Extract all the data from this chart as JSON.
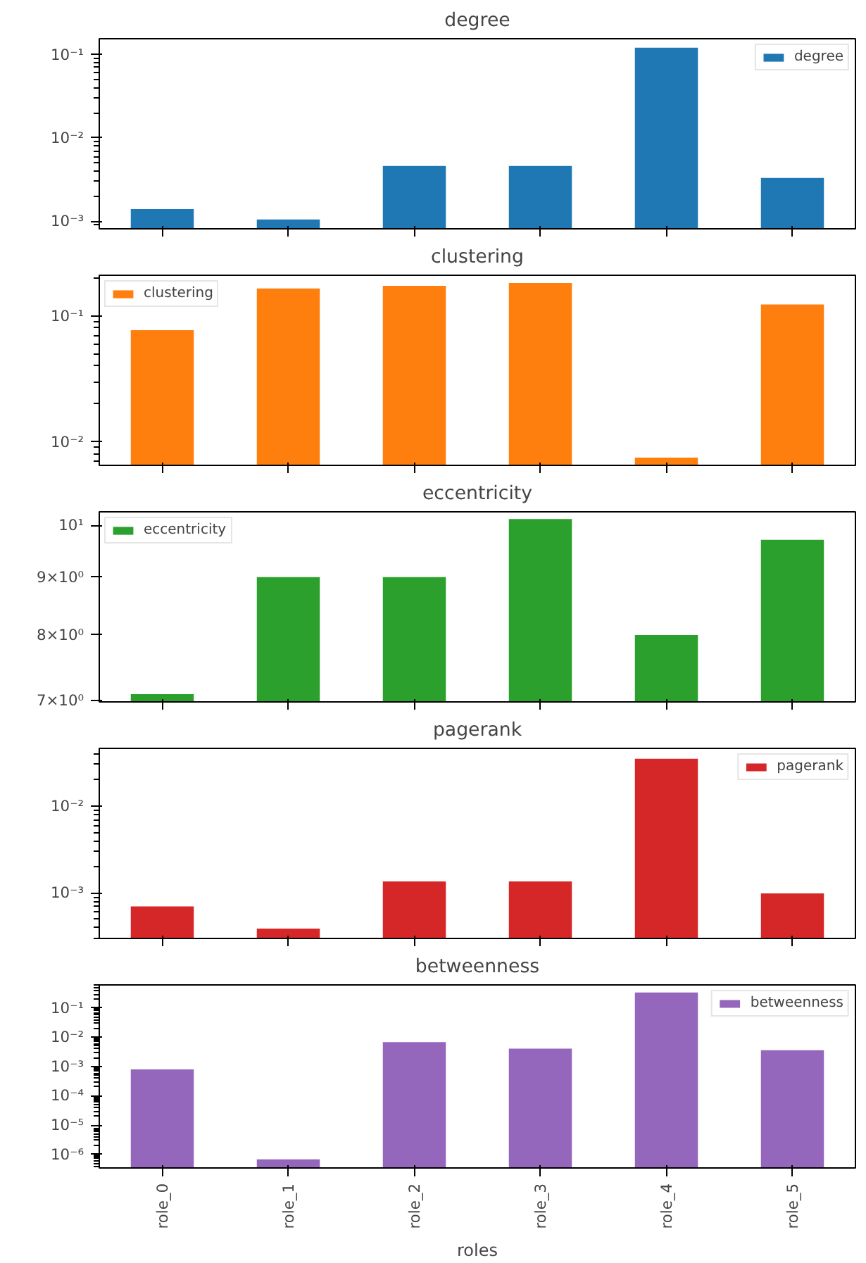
{
  "chart_data": [
    {
      "type": "bar",
      "title": "degree",
      "categories": [
        null,
        null,
        null,
        null,
        null,
        null
      ],
      "series": [
        {
          "name": "degree",
          "color": "#1f77b4",
          "values": [
            0.0014,
            0.00105,
            0.0046,
            0.0046,
            0.121,
            0.0033
          ]
        }
      ],
      "log": true,
      "ylim": [
        0.00081,
        0.155
      ],
      "yticks": [
        {
          "value": 0.001,
          "label": "10⁻³"
        },
        {
          "value": 0.01,
          "label": "10⁻²"
        },
        {
          "value": 0.1,
          "label": "10⁻¹"
        }
      ],
      "legend": "top right",
      "tick_labels": "y"
    },
    {
      "type": "bar",
      "title": "clustering",
      "categories": [
        null,
        null,
        null,
        null,
        null,
        null
      ],
      "series": [
        {
          "name": "clustering",
          "color": "#ff7f0e",
          "values": [
            0.077,
            0.165,
            0.173,
            0.182,
            0.0075,
            0.123
          ]
        }
      ],
      "log": true,
      "ylim": [
        0.0065,
        0.21
      ],
      "yticks": [
        {
          "value": 0.01,
          "label": "10⁻²"
        },
        {
          "value": 0.1,
          "label": "10⁻¹"
        }
      ],
      "legend": "top left",
      "tick_labels": "y"
    },
    {
      "type": "bar",
      "title": "eccentricity",
      "categories": [
        null,
        null,
        null,
        null,
        null,
        null
      ],
      "series": [
        {
          "name": "eccentricity",
          "color": "#2ca02c",
          "values": [
            7.09,
            9,
            9,
            10.13,
            8,
            9.71
          ]
        }
      ],
      "log": true,
      "ylim": [
        6.98,
        10.28
      ],
      "yticks": [
        {
          "value": 7,
          "label": "7×10⁰"
        },
        {
          "value": 8,
          "label": "8×10⁰"
        },
        {
          "value": 9,
          "label": "9×10⁰"
        },
        {
          "value": 10,
          "label": "10¹"
        }
      ],
      "legend": "top left",
      "tick_labels": "y"
    },
    {
      "type": "bar",
      "title": "pagerank",
      "categories": [
        null,
        null,
        null,
        null,
        null,
        null
      ],
      "series": [
        {
          "name": "pagerank",
          "color": "#d62728",
          "values": [
            0.0007,
            0.00039,
            0.00136,
            0.00136,
            0.035,
            0.00099
          ]
        }
      ],
      "log": true,
      "ylim": [
        0.0003,
        0.046
      ],
      "yticks": [
        {
          "value": 0.001,
          "label": "10⁻³"
        },
        {
          "value": 0.01,
          "label": "10⁻²"
        }
      ],
      "legend": "top right",
      "tick_labels": "y"
    },
    {
      "type": "bar",
      "title": "betweenness",
      "xlabel": "roles",
      "categories": [
        "role_0",
        "role_1",
        "role_2",
        "role_3",
        "role_4",
        "role_5"
      ],
      "series": [
        {
          "name": "betweenness",
          "color": "#9467bd",
          "values": [
            0.0008,
            6.7e-07,
            0.0069,
            0.0041,
            0.34,
            0.0036
          ]
        }
      ],
      "log": true,
      "ylim": [
        3.4e-07,
        0.62
      ],
      "yticks": [
        {
          "value": 1e-06,
          "label": "10⁻⁶"
        },
        {
          "value": 1e-05,
          "label": "10⁻⁵"
        },
        {
          "value": 0.0001,
          "label": "10⁻⁴"
        },
        {
          "value": 0.001,
          "label": "10⁻³"
        },
        {
          "value": 0.01,
          "label": "10⁻²"
        },
        {
          "value": 0.1,
          "label": "10⁻¹"
        }
      ],
      "legend": "top right"
    }
  ]
}
